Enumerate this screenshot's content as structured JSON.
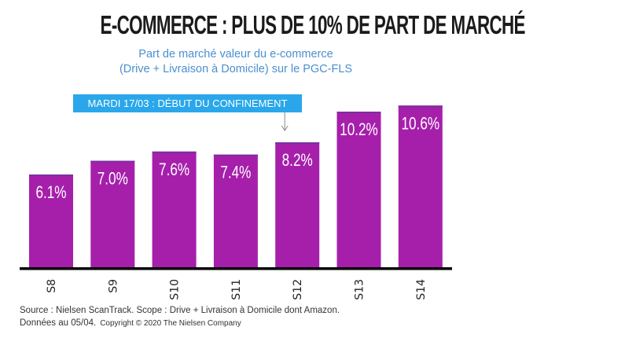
{
  "chart_data": {
    "type": "bar",
    "title": "E-COMMERCE : PLUS DE 10% DE PART DE MARCHÉ",
    "subtitle": [
      "Part de marché  valeur du e-commerce",
      "(Drive + Livraison à Domicile) sur le PGC-FLS"
    ],
    "categories": [
      "S8",
      "S9",
      "S10",
      "S11",
      "S12",
      "S13",
      "S14"
    ],
    "values": [
      6.1,
      7.0,
      7.6,
      7.4,
      8.2,
      10.2,
      10.6
    ],
    "data_labels": [
      "6.1%",
      "7.0%",
      "7.6%",
      "7.4%",
      "8.2%",
      "10.2%",
      "10.6%"
    ],
    "annotation": {
      "text": "MARDI 17/03 : DÉBUT DU CONFINEMENT",
      "category": "S12"
    },
    "ylim": [
      0,
      11
    ],
    "grid": false,
    "colors": {
      "bar": "#a61fab",
      "bar_top": "#7a2e9c",
      "banner": "#2aa7ea",
      "subtitle": "#4a8fd0"
    }
  },
  "footer": {
    "line1": "Source : Nielsen ScanTrack. Scope : Drive + Livraison à Domicile dont Amazon.",
    "line2": "Données au 05/04.",
    "copyright": "Copyright © 2020 The Nielsen Company"
  }
}
